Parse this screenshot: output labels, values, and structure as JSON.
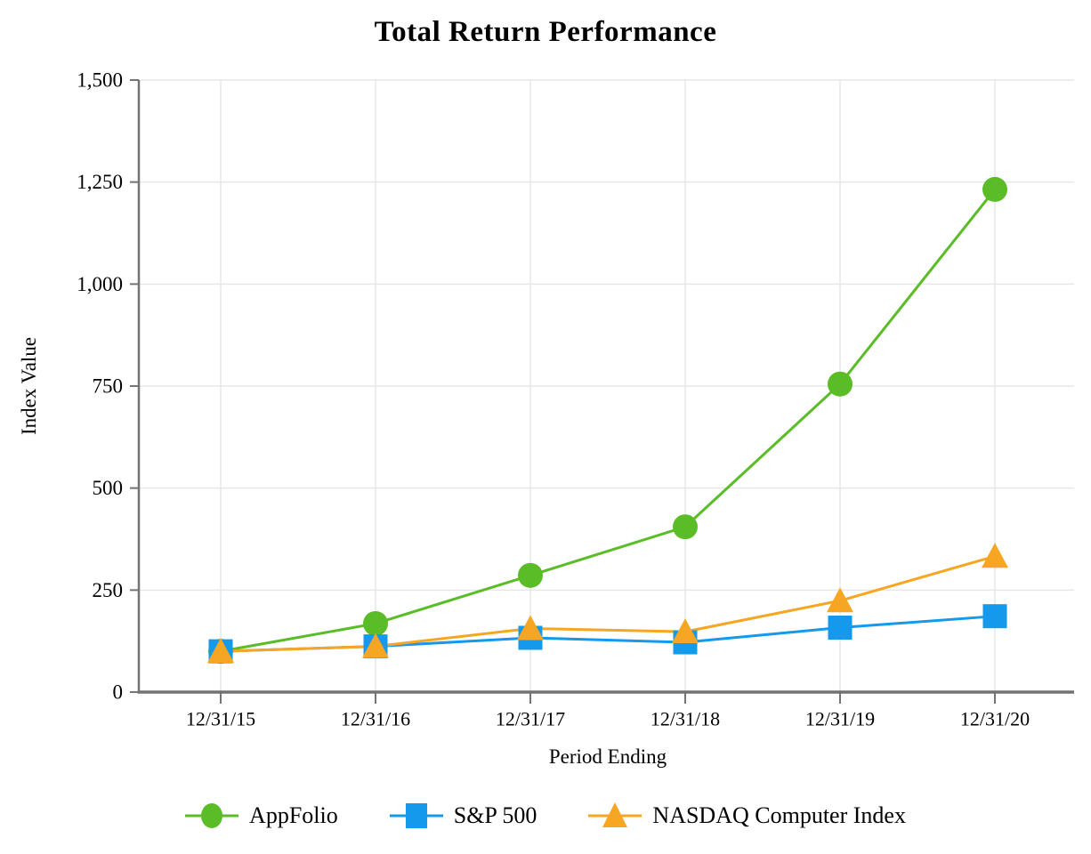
{
  "chart_data": {
    "type": "line",
    "title": "Total Return Performance",
    "xlabel": "Period Ending",
    "ylabel": "Index Value",
    "categories": [
      "12/31/15",
      "12/31/16",
      "12/31/17",
      "12/31/18",
      "12/31/19",
      "12/31/20"
    ],
    "ylim": [
      0,
      1500
    ],
    "y_ticks": [
      {
        "value": 0,
        "label": "0"
      },
      {
        "value": 250,
        "label": "250"
      },
      {
        "value": 500,
        "label": "500"
      },
      {
        "value": 750,
        "label": "750"
      },
      {
        "value": 1000,
        "label": "1,000"
      },
      {
        "value": 1250,
        "label": "1,250"
      },
      {
        "value": 1500,
        "label": "1,500"
      }
    ],
    "grid": true,
    "legend_position": "bottom",
    "axis_color": "#737373",
    "grid_color": "#e7e7e7",
    "series": [
      {
        "name": "AppFolio",
        "marker": "circle",
        "color": "#5abd28",
        "values": [
          100,
          168,
          286,
          405,
          755,
          1232
        ]
      },
      {
        "name": "S&P 500",
        "marker": "square",
        "color": "#1499ec",
        "values": [
          100,
          112,
          133,
          122,
          158,
          186
        ]
      },
      {
        "name": "NASDAQ Computer Index",
        "marker": "triangle",
        "color": "#f6a623",
        "values": [
          100,
          112,
          156,
          148,
          224,
          333
        ]
      }
    ]
  }
}
